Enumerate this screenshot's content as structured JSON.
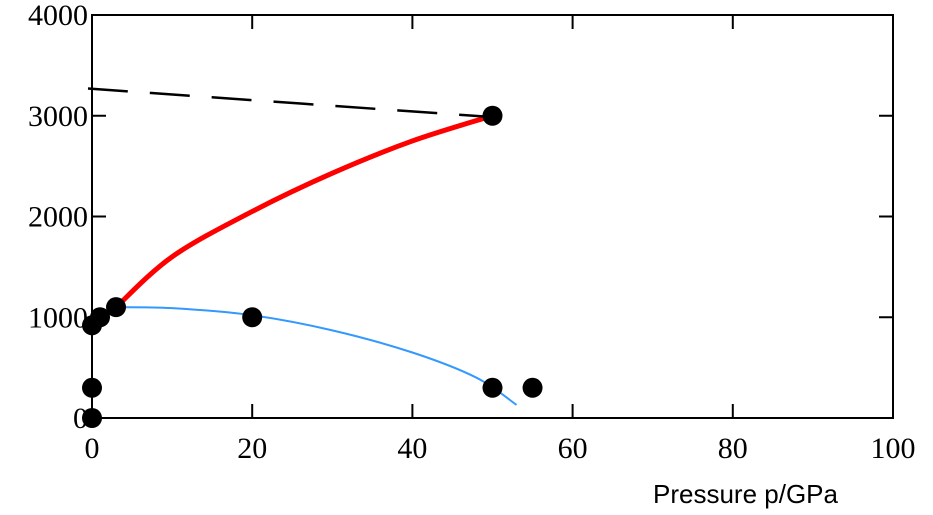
{
  "chart_data": {
    "type": "scatter",
    "title": "",
    "xlabel": "Pressure p/GPa",
    "ylabel": "",
    "xlim": [
      0,
      100
    ],
    "ylim": [
      0,
      4000
    ],
    "x_ticks": [
      0,
      20,
      40,
      60,
      80,
      100
    ],
    "y_ticks": [
      0,
      1000,
      2000,
      3000,
      4000
    ],
    "grid": false,
    "series": [
      {
        "kind": "points",
        "color": "#000000",
        "points": [
          {
            "x": 0,
            "y": 0
          },
          {
            "x": 0,
            "y": 300
          },
          {
            "x": 0,
            "y": 920
          },
          {
            "x": 1,
            "y": 1000
          },
          {
            "x": 3,
            "y": 1100
          },
          {
            "x": 20,
            "y": 1000
          },
          {
            "x": 50,
            "y": 300
          },
          {
            "x": 55,
            "y": 300
          },
          {
            "x": 50,
            "y": 3000
          }
        ]
      },
      {
        "kind": "line",
        "color": "#ff0000",
        "style": "solid",
        "points": [
          {
            "x": 3,
            "y": 1100
          },
          {
            "x": 10,
            "y": 1600
          },
          {
            "x": 20,
            "y": 2050
          },
          {
            "x": 30,
            "y": 2430
          },
          {
            "x": 40,
            "y": 2750
          },
          {
            "x": 50,
            "y": 3000
          }
        ]
      },
      {
        "kind": "line",
        "color": "#3399ff",
        "style": "solid",
        "points": [
          {
            "x": 3,
            "y": 1100
          },
          {
            "x": 10,
            "y": 1090
          },
          {
            "x": 20,
            "y": 1020
          },
          {
            "x": 30,
            "y": 870
          },
          {
            "x": 40,
            "y": 650
          },
          {
            "x": 48,
            "y": 400
          },
          {
            "x": 53,
            "y": 130
          }
        ]
      },
      {
        "kind": "line",
        "color": "#000000",
        "style": "dashed",
        "points": [
          {
            "x": -0.5,
            "y": 3270
          },
          {
            "x": 53,
            "y": 2970
          }
        ]
      }
    ]
  }
}
